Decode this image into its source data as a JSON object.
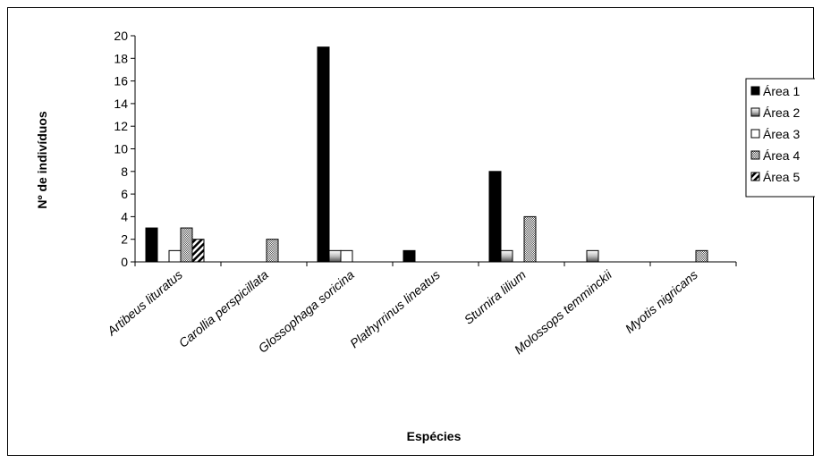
{
  "chart_data": {
    "type": "bar",
    "title": "",
    "xlabel": "Espécies",
    "ylabel": "Nº de indivíduos",
    "ylim": [
      0,
      20
    ],
    "ytick_step": 2,
    "grid": false,
    "legend_position": "right",
    "categories": [
      "Artibeus lituratus",
      "Carollia perspicillata",
      "Glossophaga soricina",
      "Plathyrrinus lineatus",
      "Sturnira lilium",
      "Molossops temminckii",
      "Myotis nigricans"
    ],
    "series": [
      {
        "name": "Área 1",
        "pattern": "solid-black",
        "values": [
          3,
          0,
          19,
          1,
          8,
          0,
          0
        ]
      },
      {
        "name": "Área 2",
        "pattern": "horizontal-gradient",
        "values": [
          0,
          0,
          1,
          0,
          1,
          1,
          0
        ]
      },
      {
        "name": "Área 3",
        "pattern": "white",
        "values": [
          1,
          0,
          1,
          0,
          0,
          0,
          0
        ]
      },
      {
        "name": "Área 4",
        "pattern": "checker",
        "values": [
          3,
          2,
          0,
          0,
          4,
          0,
          1
        ]
      },
      {
        "name": "Área 5",
        "pattern": "diagonal-stripes",
        "values": [
          2,
          0,
          0,
          0,
          0,
          0,
          0
        ]
      }
    ]
  }
}
